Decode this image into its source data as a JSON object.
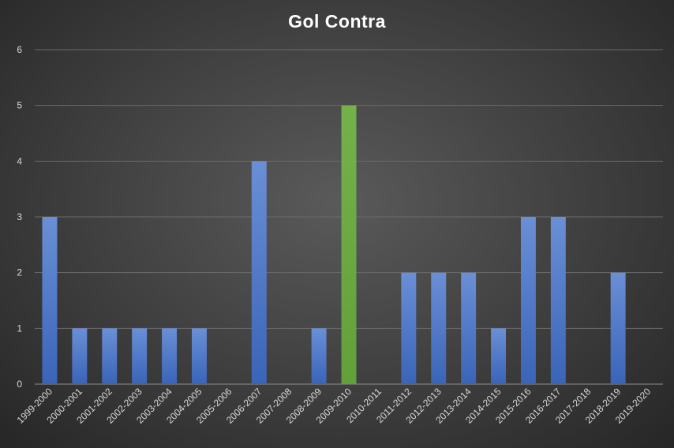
{
  "chart_data": {
    "type": "bar",
    "title": "Gol Contra",
    "categories": [
      "1999-2000",
      "2000-2001",
      "2001-2002",
      "2002-2003",
      "2003-2004",
      "2004-2005",
      "2005-2006",
      "2006-2007",
      "2007-2008",
      "2008-2009",
      "2009-2010",
      "2010-2011",
      "2011-2012",
      "2012-2013",
      "2013-2014",
      "2014-2015",
      "2015-2016",
      "2016-2017",
      "2017-2018",
      "2018-2019",
      "2019-2020"
    ],
    "values": [
      3,
      1,
      1,
      1,
      1,
      1,
      0,
      4,
      0,
      1,
      5,
      0,
      2,
      2,
      2,
      1,
      3,
      3,
      0,
      2,
      0
    ],
    "ylim": [
      0,
      6
    ],
    "yticks": [
      0,
      1,
      2,
      3,
      4,
      5,
      6
    ],
    "grid": true,
    "legend": "none",
    "colors": {
      "default": "#4472C4",
      "highlight": "#70AD47"
    },
    "highlight_category": "2009-2010"
  }
}
